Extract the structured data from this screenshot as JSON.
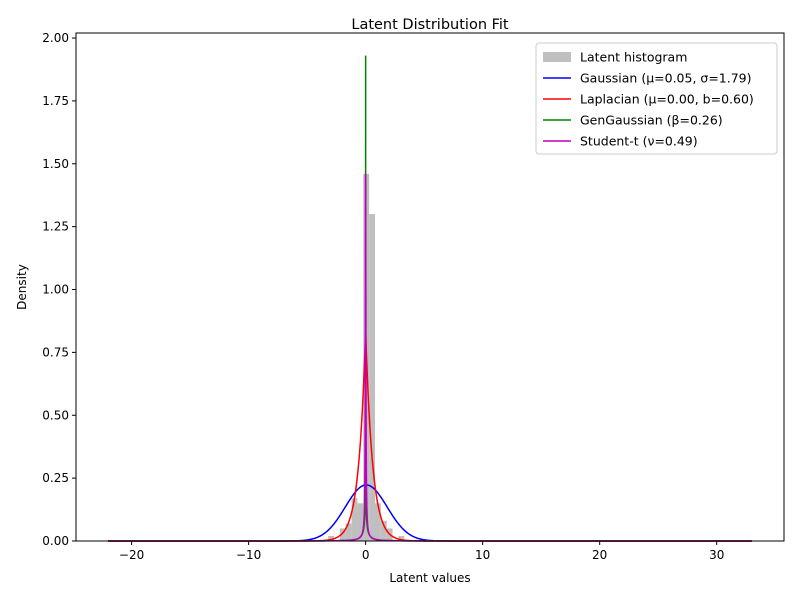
{
  "chart_data": {
    "type": "line",
    "title": "Latent Distribution Fit",
    "xlabel": "Latent values",
    "ylabel": "Density",
    "xlim": [
      -24.75,
      35.75
    ],
    "ylim": [
      0,
      2.02
    ],
    "x_ticks": [
      -20,
      -10,
      0,
      10,
      20,
      30
    ],
    "x_tick_labels": [
      "−20",
      "−10",
      "0",
      "10",
      "20",
      "30"
    ],
    "y_ticks": [
      0.0,
      0.25,
      0.5,
      0.75,
      1.0,
      1.25,
      1.5,
      1.75,
      2.0
    ],
    "y_tick_labels": [
      "0.00",
      "0.25",
      "0.50",
      "0.75",
      "1.00",
      "1.25",
      "1.50",
      "1.75",
      "2.00"
    ],
    "grid": false,
    "legend_position": "top-right",
    "histogram": {
      "name": "Latent histogram",
      "color": "#bfbfbf",
      "bins": [
        {
          "x0": -3.2,
          "x1": -2.7,
          "value": 0.02
        },
        {
          "x0": -2.2,
          "x1": -1.7,
          "value": 0.05
        },
        {
          "x0": -1.7,
          "x1": -1.2,
          "value": 0.07
        },
        {
          "x0": -1.2,
          "x1": -0.7,
          "value": 0.17
        },
        {
          "x0": -0.7,
          "x1": -0.2,
          "value": 0.15
        },
        {
          "x0": -0.2,
          "x1": 0.3,
          "value": 1.46
        },
        {
          "x0": 0.3,
          "x1": 0.8,
          "value": 1.3
        },
        {
          "x0": 0.8,
          "x1": 1.3,
          "value": 0.15
        },
        {
          "x0": 1.3,
          "x1": 1.8,
          "value": 0.08
        },
        {
          "x0": 1.8,
          "x1": 2.3,
          "value": 0.05
        },
        {
          "x0": 2.8,
          "x1": 3.3,
          "value": 0.02
        }
      ]
    },
    "series": [
      {
        "name": "Gaussian (μ=0.05, σ=1.79)",
        "color": "#0000ff",
        "distribution": "gaussian",
        "params": {
          "mu": 0.05,
          "sigma": 1.79
        }
      },
      {
        "name": "Laplacian (μ=0.00, b=0.60)",
        "color": "#ff0000",
        "distribution": "laplace",
        "params": {
          "mu": 0.0,
          "b": 0.6
        }
      },
      {
        "name": "GenGaussian (β=0.26)",
        "color": "#008000",
        "distribution": "gengaussian",
        "params": {
          "beta": 0.26,
          "peak": 1.93
        }
      },
      {
        "name": "Student-t (ν=0.49)",
        "color": "#bf00bf",
        "distribution": "studentt",
        "params": {
          "nu": 0.49,
          "peak": 1.46
        }
      }
    ],
    "curve_x_range": [
      -22,
      33
    ]
  }
}
